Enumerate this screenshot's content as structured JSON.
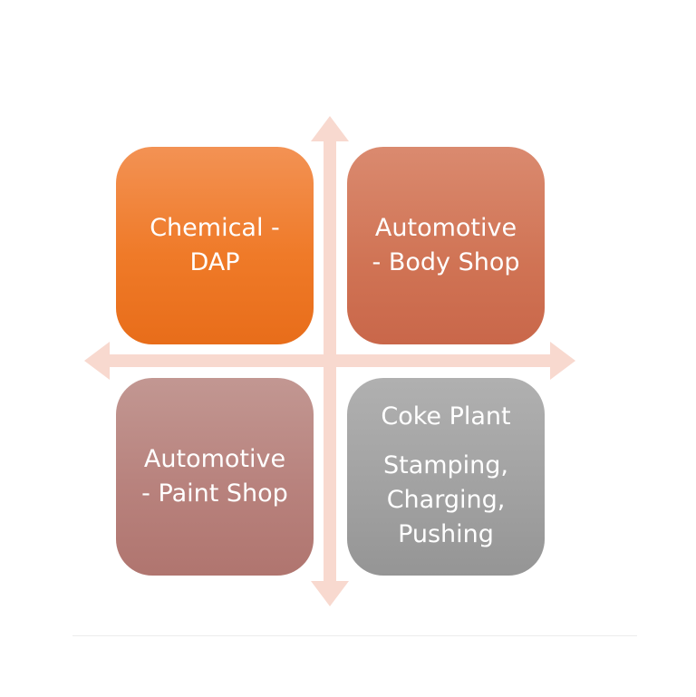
{
  "diagram": {
    "quadrants": {
      "top_left": {
        "lines": [
          "Chemical -",
          "DAP"
        ]
      },
      "top_right": {
        "lines": [
          "Automotive",
          "- Body Shop"
        ]
      },
      "bottom_left": {
        "lines": [
          "Automotive",
          "- Paint Shop"
        ]
      },
      "bottom_right": {
        "title": "Coke Plant",
        "lines": [
          "Stamping,",
          "Charging,",
          "Pushing"
        ]
      }
    },
    "colors": {
      "top_left": "#ef7a28",
      "top_right": "#d07354",
      "bottom_left": "#b8827d",
      "bottom_right": "#a2a2a2",
      "arrows": "#f8d9cf"
    }
  }
}
